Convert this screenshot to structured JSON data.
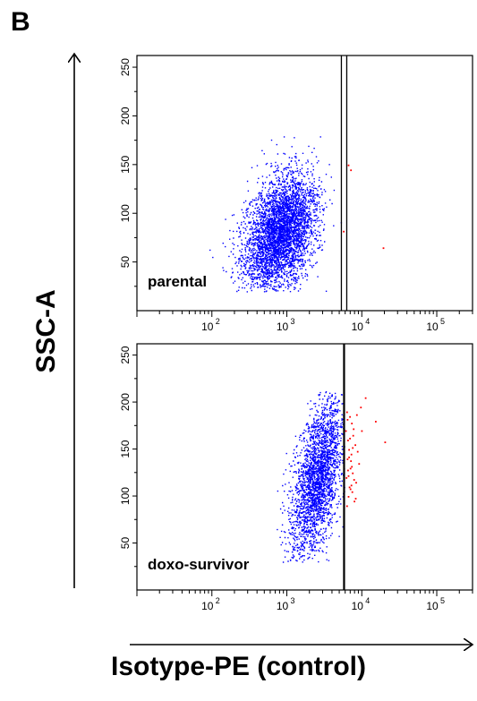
{
  "panel_letter": "B",
  "colors": {
    "main_population": "#0000ff",
    "positive_events": "#ff0000",
    "axes": "#000000"
  },
  "chart_data": [
    {
      "type": "scatter",
      "label": "parental",
      "xlabel": "Isotype-PE (control)",
      "ylabel": "SSC-A",
      "x_scale": "log",
      "xlim": [
        10,
        300000
      ],
      "ylim": [
        0,
        262
      ],
      "x_ticks": [
        {
          "base": "10",
          "exp": "2"
        },
        {
          "base": "10",
          "exp": "3"
        },
        {
          "base": "10",
          "exp": "4"
        },
        {
          "base": "10",
          "exp": "5"
        }
      ],
      "y_ticks": [
        "50",
        "100",
        "150",
        "200",
        "250"
      ],
      "gate": {
        "x": 5800,
        "style": "double"
      },
      "population": {
        "x_log_center": 2.9,
        "x_log_spread": 0.22,
        "x_log_skew_by_y": 0.0028,
        "y_center": 80,
        "y_spread": 30,
        "y_min": 20,
        "y_max": 195,
        "n": 11000
      },
      "positive_points": [
        [
          6500,
          150
        ],
        [
          7000,
          145
        ],
        [
          5600,
          82
        ],
        [
          19000,
          65
        ]
      ]
    },
    {
      "type": "scatter",
      "label": "doxo-survivor",
      "xlabel": "Isotype-PE (control)",
      "ylabel": "SSC-A",
      "x_scale": "log",
      "xlim": [
        10,
        300000
      ],
      "ylim": [
        0,
        262
      ],
      "x_ticks": [
        {
          "base": "10",
          "exp": "2"
        },
        {
          "base": "10",
          "exp": "3"
        },
        {
          "base": "10",
          "exp": "4"
        },
        {
          "base": "10",
          "exp": "5"
        }
      ],
      "y_ticks": [
        "50",
        "100",
        "150",
        "200",
        "250"
      ],
      "gate": {
        "x": 5800,
        "style": "single"
      },
      "population": {
        "x_log_center": 3.4,
        "x_log_spread": 0.15,
        "x_log_skew_by_y": 0.0022,
        "y_center": 120,
        "y_spread": 42,
        "y_min": 30,
        "y_max": 212,
        "n": 11000
      },
      "positive_points": [
        [
          6200,
          190
        ],
        [
          6800,
          185
        ],
        [
          7200,
          178
        ],
        [
          6000,
          170
        ],
        [
          7500,
          165
        ],
        [
          6400,
          160
        ],
        [
          8000,
          155
        ],
        [
          6600,
          150
        ],
        [
          7100,
          145
        ],
        [
          6300,
          140
        ],
        [
          9000,
          135
        ],
        [
          6900,
          130
        ],
        [
          7400,
          125
        ],
        [
          6100,
          120
        ],
        [
          8200,
          115
        ],
        [
          6700,
          110
        ],
        [
          7300,
          105
        ],
        [
          6500,
          100
        ],
        [
          7800,
          95
        ],
        [
          6200,
          90
        ],
        [
          11000,
          205
        ],
        [
          9500,
          195
        ],
        [
          15000,
          180
        ],
        [
          20000,
          158
        ],
        [
          7600,
          172
        ],
        [
          6800,
          162
        ],
        [
          8600,
          148
        ],
        [
          7000,
          138
        ],
        [
          6400,
          128
        ],
        [
          7700,
          118
        ],
        [
          6900,
          108
        ],
        [
          8100,
          98
        ],
        [
          6300,
          182
        ],
        [
          7400,
          152
        ],
        [
          6600,
          142
        ],
        [
          9800,
          170
        ],
        [
          7200,
          132
        ],
        [
          6500,
          122
        ],
        [
          8400,
          187
        ],
        [
          7100,
          112
        ]
      ]
    }
  ]
}
